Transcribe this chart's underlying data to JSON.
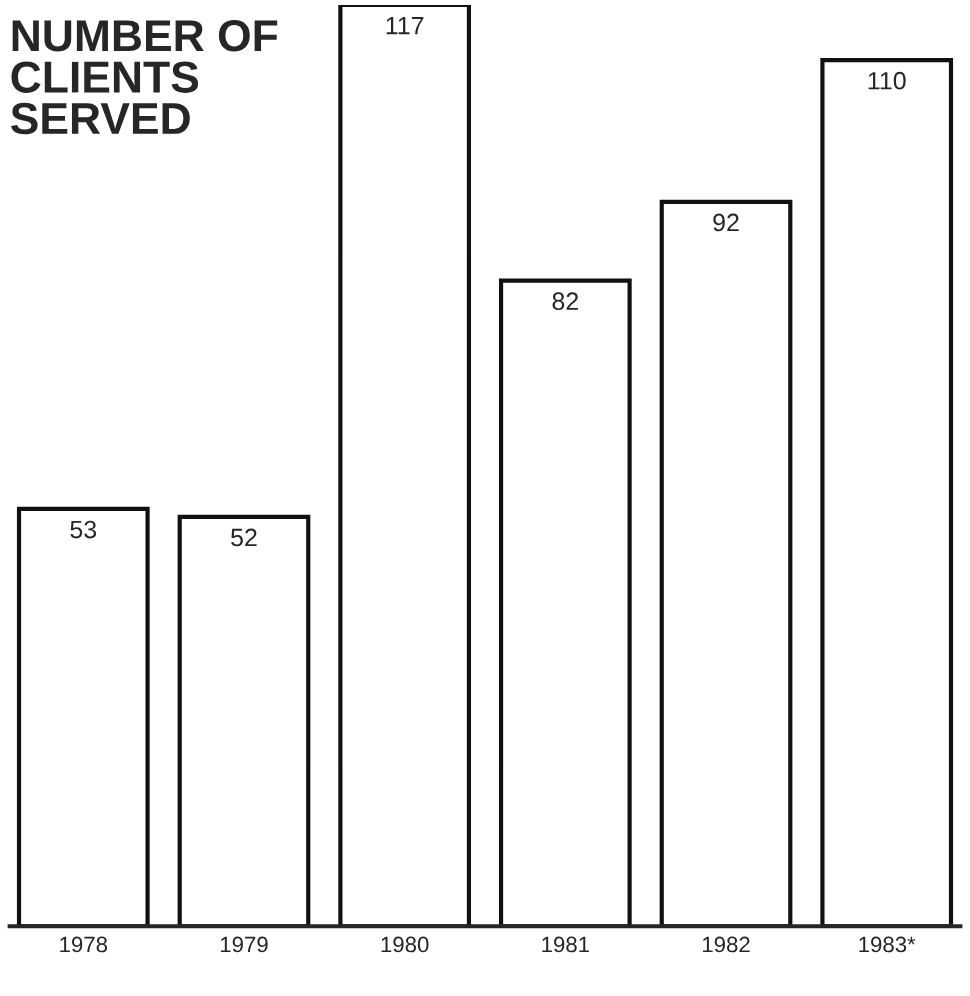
{
  "chart_data": {
    "type": "bar",
    "title": "NUMBER OF\nCLIENTS\nSERVED",
    "categories": [
      "1978",
      "1979",
      "1980",
      "1981",
      "1982",
      "1983*"
    ],
    "values": [
      53,
      52,
      117,
      82,
      92,
      110
    ],
    "color": "#ffffff",
    "data_labels": true
  }
}
